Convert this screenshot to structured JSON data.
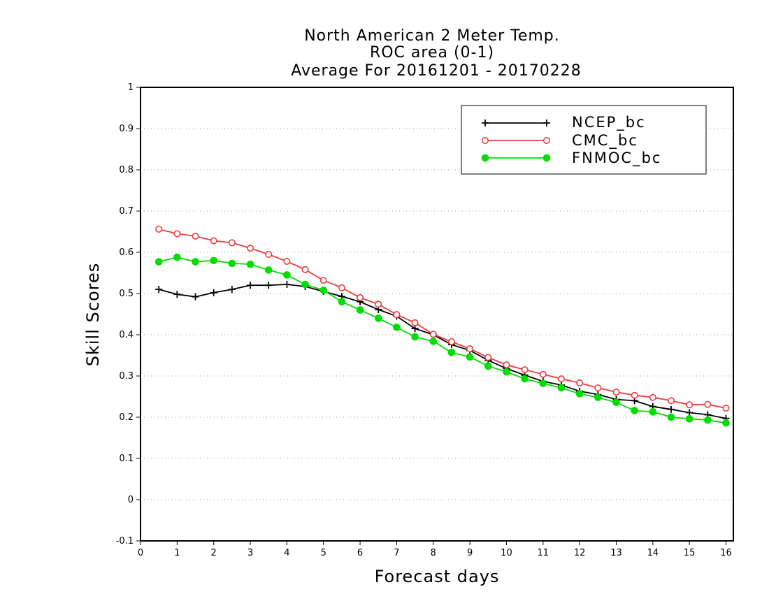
{
  "chart_data": {
    "type": "line",
    "title_lines": [
      "North American 2 Meter Temp.",
      "ROC area (0-1)",
      "Average For 20161201 - 20170228"
    ],
    "xlabel": "Forecast days",
    "ylabel": "Skill Scores",
    "xlim": [
      0,
      16.2
    ],
    "ylim": [
      -0.1,
      1.0
    ],
    "x_ticks": [
      0,
      1,
      2,
      3,
      4,
      5,
      6,
      7,
      8,
      9,
      10,
      11,
      12,
      13,
      14,
      15,
      16
    ],
    "x_tick_labels": [
      "0",
      "1",
      "2",
      "3",
      "4",
      "5",
      "6",
      "7",
      "8",
      "9",
      "10",
      "11",
      "12",
      "13",
      "14",
      "15",
      "16"
    ],
    "y_ticks": [
      -0.1,
      0,
      0.1,
      0.2,
      0.3,
      0.4,
      0.5,
      0.6,
      0.7,
      0.8,
      0.9,
      1
    ],
    "y_tick_labels": [
      "-0.1",
      "0",
      "0.1",
      "0.2",
      "0.3",
      "0.4",
      "0.5",
      "0.6",
      "0.7",
      "0.8",
      "0.9",
      "1"
    ],
    "grid": "horizontal dotted",
    "legend_position": "top-right",
    "x": [
      0.5,
      1,
      1.5,
      2,
      2.5,
      3,
      3.5,
      4,
      4.5,
      5,
      5.5,
      6,
      6.5,
      7,
      7.5,
      8,
      8.5,
      9,
      9.5,
      10,
      10.5,
      11,
      11.5,
      12,
      12.5,
      13,
      13.5,
      14,
      14.5,
      15,
      15.5,
      16
    ],
    "series": [
      {
        "name": "NCEP_bc",
        "color": "#000000",
        "marker": "plus",
        "values": [
          0.51,
          0.498,
          0.492,
          0.502,
          0.51,
          0.52,
          0.52,
          0.522,
          0.517,
          0.505,
          0.493,
          0.48,
          0.461,
          0.445,
          0.415,
          0.4,
          0.376,
          0.362,
          0.338,
          0.318,
          0.302,
          0.287,
          0.278,
          0.263,
          0.255,
          0.243,
          0.24,
          0.226,
          0.219,
          0.211,
          0.206,
          0.197
        ]
      },
      {
        "name": "CMC_bc",
        "color": "#ee3b3b",
        "marker": "open-circle",
        "values": [
          0.656,
          0.645,
          0.639,
          0.628,
          0.623,
          0.61,
          0.595,
          0.578,
          0.558,
          0.532,
          0.514,
          0.49,
          0.474,
          0.449,
          0.429,
          0.401,
          0.383,
          0.366,
          0.345,
          0.327,
          0.315,
          0.304,
          0.293,
          0.283,
          0.271,
          0.261,
          0.253,
          0.248,
          0.24,
          0.23,
          0.231,
          0.222
        ]
      },
      {
        "name": "FNMOC_bc",
        "color": "#00dd00",
        "marker": "filled-circle",
        "values": [
          0.577,
          0.588,
          0.577,
          0.58,
          0.573,
          0.571,
          0.557,
          0.545,
          0.522,
          0.508,
          0.48,
          0.46,
          0.44,
          0.418,
          0.395,
          0.384,
          0.357,
          0.346,
          0.324,
          0.31,
          0.293,
          0.282,
          0.271,
          0.257,
          0.248,
          0.236,
          0.216,
          0.213,
          0.2,
          0.196,
          0.193,
          0.186
        ]
      }
    ]
  }
}
